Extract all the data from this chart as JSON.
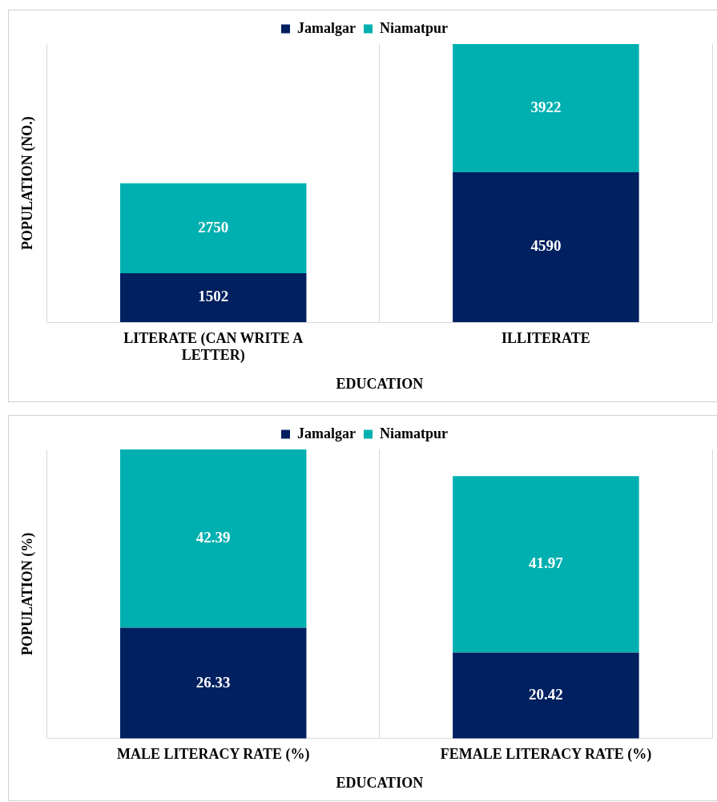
{
  "chart_data": [
    {
      "type": "bar",
      "stacked": true,
      "xlabel": "EDUCATION",
      "ylabel": "POPULATION (NO.)",
      "categories": [
        "LITERATE (CAN WRITE A LETTER)",
        "ILLITERATE"
      ],
      "series": [
        {
          "name": "Jamalgar",
          "color": "#002060",
          "values": [
            1502,
            4590
          ]
        },
        {
          "name": "Niamatpur",
          "color": "#00b0b0",
          "values": [
            2750,
            3922
          ]
        }
      ],
      "data_labels": true,
      "legend": "top",
      "grid": "x",
      "tick_labels": "x"
    },
    {
      "type": "bar",
      "stacked": true,
      "xlabel": "EDUCATION",
      "ylabel": "POPULATION (%)",
      "categories": [
        "MALE LITERACY RATE (%)",
        "FEMALE LITERACY RATE (%)"
      ],
      "series": [
        {
          "name": "Jamalgar",
          "color": "#002060",
          "values": [
            26.33,
            20.42
          ]
        },
        {
          "name": "Niamatpur",
          "color": "#00b0b0",
          "values": [
            42.39,
            41.97
          ]
        }
      ],
      "data_labels": true,
      "legend": "top",
      "grid": "x",
      "tick_labels": "x"
    }
  ]
}
